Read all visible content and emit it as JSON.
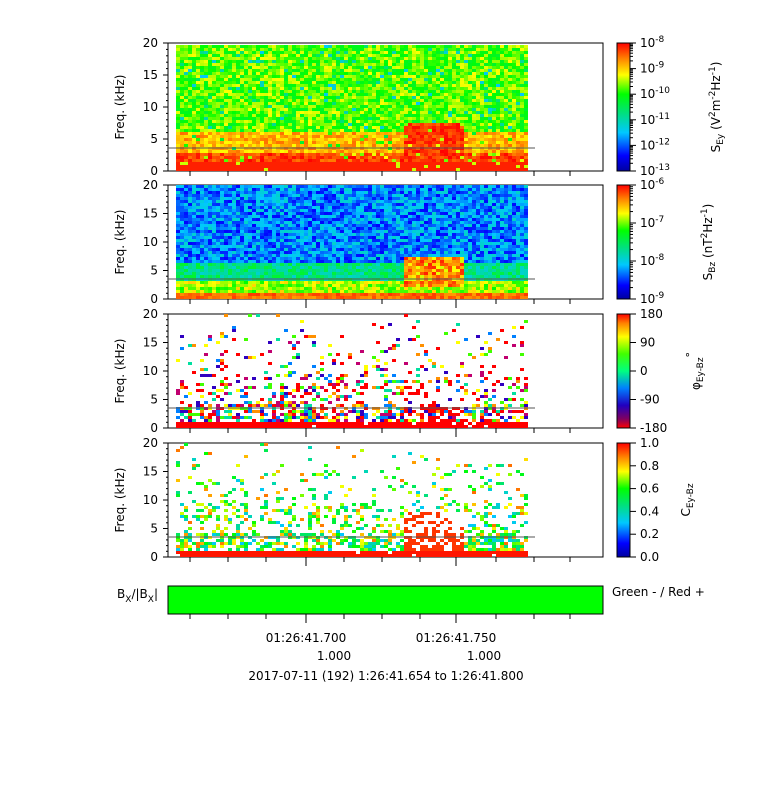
{
  "chart_data": [
    {
      "type": "heatmap",
      "ylabel": "Freq. (kHz)",
      "ylim": [
        0,
        20
      ],
      "yticks": [
        "0",
        "5",
        "10",
        "15",
        "20"
      ],
      "colorbar": {
        "label_main": "S",
        "label_sub": "Ey",
        "label_unit": "(V",
        "label_unit_rest": "m",
        "label_unit_end": "Hz",
        "label_close": ")",
        "sup2": "2",
        "supm2": "-2",
        "supm1": "-1",
        "scale": "log",
        "ticks": [
          {
            "base": "10",
            "exp": "-8"
          },
          {
            "base": "10",
            "exp": "-9"
          },
          {
            "base": "10",
            "exp": "-10"
          },
          {
            "base": "10",
            "exp": "-11"
          },
          {
            "base": "10",
            "exp": "-12"
          },
          {
            "base": "10",
            "exp": "-13"
          }
        ]
      }
    },
    {
      "type": "heatmap",
      "ylabel": "Freq. (kHz)",
      "ylim": [
        0,
        20
      ],
      "yticks": [
        "0",
        "5",
        "10",
        "15",
        "20"
      ],
      "colorbar": {
        "label_main": "S",
        "label_sub": "Bz",
        "label_unit": "(nT",
        "label_unit_end": "Hz",
        "label_close": ")",
        "sup2": "2",
        "supm1": "-1",
        "scale": "log",
        "ticks": [
          {
            "base": "10",
            "exp": "-6"
          },
          {
            "base": "10",
            "exp": "-7"
          },
          {
            "base": "10",
            "exp": "-8"
          },
          {
            "base": "10",
            "exp": "-9"
          }
        ]
      }
    },
    {
      "type": "heatmap",
      "ylabel": "Freq. (kHz)",
      "ylim": [
        0,
        20
      ],
      "yticks": [
        "0",
        "5",
        "10",
        "15",
        "20"
      ],
      "colorbar": {
        "label_main": "φ",
        "label_sub": "Ey-Bz",
        "label_sup": "°",
        "scale": "linear",
        "ticks": [
          "180",
          "90",
          "0",
          "-90",
          "-180"
        ]
      }
    },
    {
      "type": "heatmap",
      "ylabel": "Freq. (kHz)",
      "ylim": [
        0,
        20
      ],
      "yticks": [
        "0",
        "5",
        "10",
        "15",
        "20"
      ],
      "colorbar": {
        "label_main": "C",
        "label_sub": "Ey-Bz",
        "scale": "linear",
        "ticks": [
          "1.0",
          "0.8",
          "0.6",
          "0.4",
          "0.2",
          "0.0"
        ]
      }
    }
  ],
  "bar_panel": {
    "label_main": "B",
    "label_sub": "X",
    "label_mid": "/|B",
    "label_sub2": "X",
    "label_end": "|",
    "legend": "Green - / Red +",
    "fill_color": "#00ff00"
  },
  "time_axis": {
    "tick_labels": [
      "01:26:41.700",
      "01:26:41.750"
    ],
    "sub_labels": [
      "1.000",
      "1.000"
    ],
    "range_label": "2017-07-11 (192) 1:26:41.654 to 1:26:41.800"
  }
}
